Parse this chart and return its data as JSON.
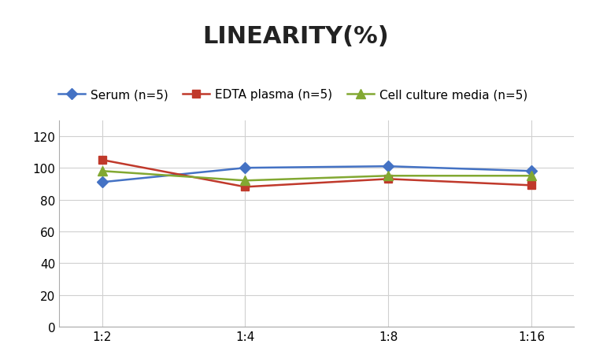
{
  "title": "LINEARITY(%)",
  "x_labels": [
    "1:2",
    "1:4",
    "1:8",
    "1:16"
  ],
  "series": [
    {
      "label": "Serum (n=5)",
      "values": [
        91,
        100,
        101,
        98
      ],
      "color": "#4472C4",
      "marker": "D",
      "markersize": 7
    },
    {
      "label": "EDTA plasma (n=5)",
      "values": [
        105,
        88,
        93,
        89
      ],
      "color": "#C0392B",
      "marker": "s",
      "markersize": 7
    },
    {
      "label": "Cell culture media (n=5)",
      "values": [
        98,
        92,
        95,
        95
      ],
      "color": "#82A832",
      "marker": "^",
      "markersize": 8
    }
  ],
  "ylim": [
    0,
    130
  ],
  "yticks": [
    0,
    20,
    40,
    60,
    80,
    100,
    120
  ],
  "grid_color": "#D0D0D0",
  "background_color": "#FFFFFF",
  "title_fontsize": 22,
  "legend_fontsize": 11,
  "tick_fontsize": 11
}
